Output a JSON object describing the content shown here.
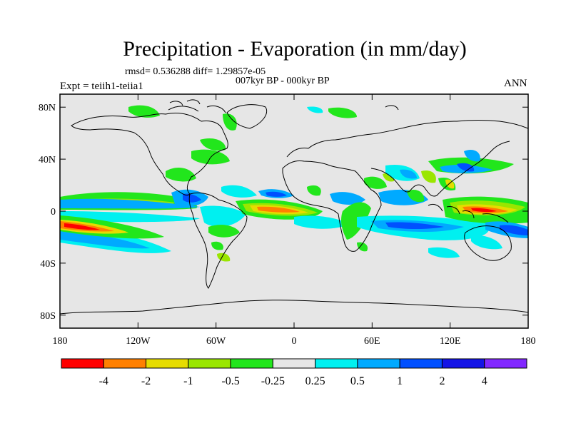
{
  "header": {
    "title": "Precipitation - Evaporation (in mm/day)",
    "stats": "rmsd= 0.536288 diff= 1.29857e-05",
    "period": "007kyr BP - 000kyr BP",
    "experiment": "Expt = teiih1-teiia1",
    "season": "ANN"
  },
  "map": {
    "lat_ticks": [
      {
        "value": 80,
        "label": "80N"
      },
      {
        "value": 40,
        "label": "40N"
      },
      {
        "value": 0,
        "label": "0"
      },
      {
        "value": -40,
        "label": "40S"
      },
      {
        "value": -80,
        "label": "80S"
      }
    ],
    "lon_ticks": [
      {
        "value": -180,
        "label": "180"
      },
      {
        "value": -120,
        "label": "120W"
      },
      {
        "value": -60,
        "label": "60W"
      },
      {
        "value": 0,
        "label": "0"
      },
      {
        "value": 60,
        "label": "60E"
      },
      {
        "value": 120,
        "label": "120E"
      },
      {
        "value": 180,
        "label": "180"
      }
    ],
    "background_color": "#e6e6e6"
  },
  "colorbar": {
    "bins": [
      {
        "color": "#ff0000"
      },
      {
        "color": "#ff8000"
      },
      {
        "color": "#e6dc00"
      },
      {
        "color": "#9ae600"
      },
      {
        "color": "#22e61c"
      },
      {
        "color": "#e6e6e6"
      },
      {
        "color": "#00f0f0"
      },
      {
        "color": "#00aaff"
      },
      {
        "color": "#0050ff"
      },
      {
        "color": "#1414e6"
      },
      {
        "color": "#8228ff"
      }
    ],
    "labels": [
      "-4",
      "-2",
      "-1",
      "-0.5",
      "-0.25",
      "0.25",
      "0.5",
      "1",
      "2",
      "4"
    ]
  }
}
